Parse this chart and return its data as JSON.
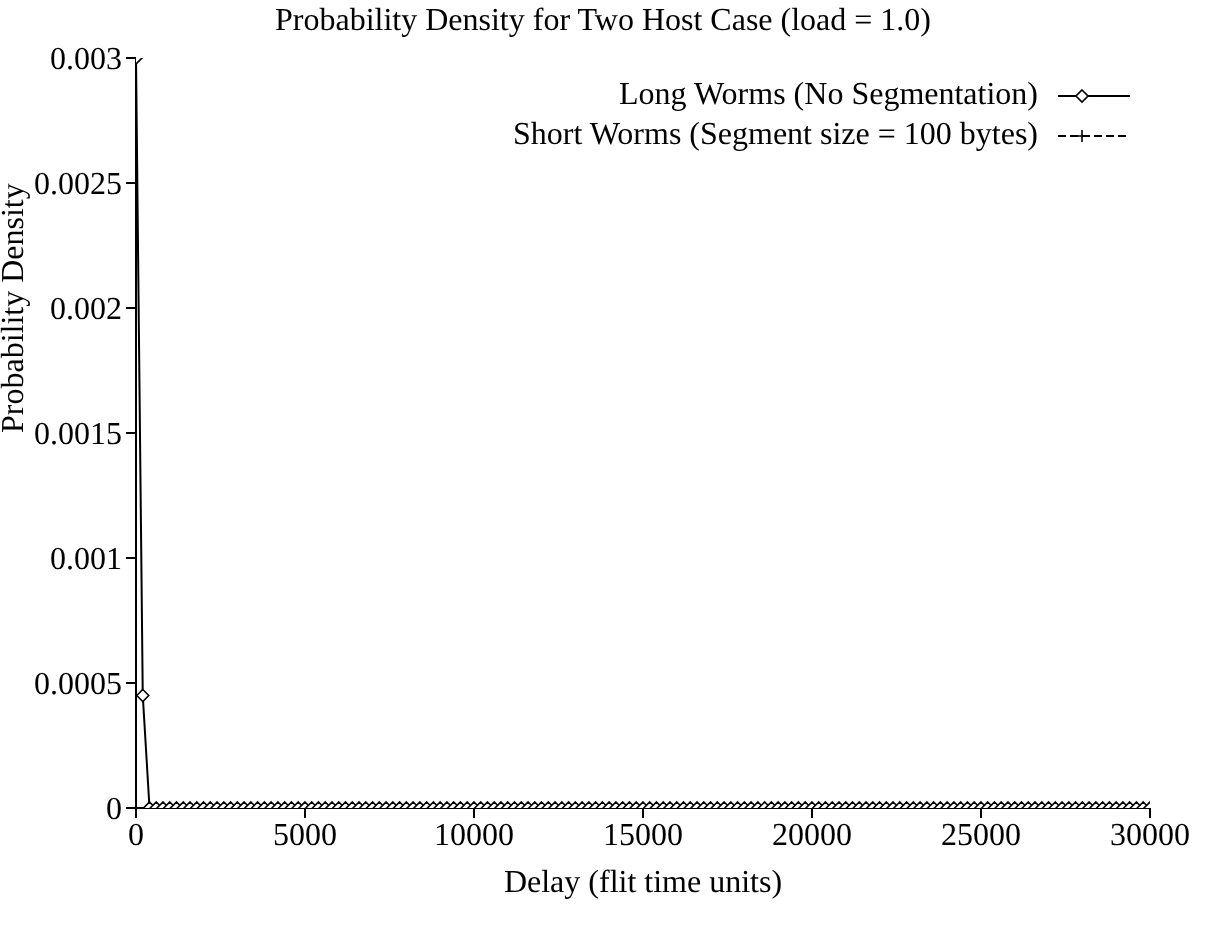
{
  "chart_data": {
    "type": "line",
    "title": "Probability Density for Two Host Case (load = 1.0)",
    "xlabel": "Delay (flit time units)",
    "ylabel": "Probability Density",
    "x": [
      0,
      200,
      400,
      600,
      800,
      1000,
      1200,
      1400,
      1600,
      1800,
      2000,
      2200,
      2400,
      2600,
      2800,
      3000,
      3200,
      3400,
      3600,
      3800,
      4000,
      4200,
      4400,
      4600,
      4800,
      5000,
      5200,
      5400,
      5600,
      5800,
      6000,
      6200,
      6400,
      6600,
      6800,
      7000,
      7200,
      7400,
      7600,
      7800,
      8000,
      8200,
      8400,
      8600,
      8800,
      9000,
      9200,
      9400,
      9600,
      9800,
      10000,
      10200,
      10400,
      10600,
      10800,
      11000,
      11200,
      11400,
      11600,
      11800,
      12000,
      12200,
      12400,
      12600,
      12800,
      13000,
      13200,
      13400,
      13600,
      13800,
      14000,
      14200,
      14400,
      14600,
      14800,
      15000,
      15200,
      15400,
      15600,
      15800,
      16000,
      16200,
      16400,
      16600,
      16800,
      17000,
      17200,
      17400,
      17600,
      17800,
      18000,
      18200,
      18400,
      18600,
      18800,
      19000,
      19200,
      19400,
      19600,
      19800,
      20000,
      20200,
      20400,
      20600,
      20800,
      21000,
      21200,
      21400,
      21600,
      21800,
      22000,
      22200,
      22400,
      22600,
      22800,
      23000,
      23200,
      23400,
      23600,
      23800,
      24000,
      24200,
      24400,
      24600,
      24800,
      25000,
      25200,
      25400,
      25600,
      25800,
      26000,
      26200,
      26400,
      26600,
      26800,
      27000,
      27200,
      27400,
      27600,
      27800,
      28000,
      28200,
      28400,
      28600,
      28800,
      29000,
      29200,
      29400,
      29600,
      29800,
      30000
    ],
    "series": [
      {
        "name": "Long Worms (No Segmentation)",
        "color": "#000000",
        "marker": "diamond",
        "line_style": "solid",
        "values": [
          0.003,
          0.00045,
          0,
          0,
          0,
          0,
          0,
          0,
          0,
          0,
          0,
          0,
          0,
          0,
          0,
          0,
          0,
          0,
          0,
          0,
          0,
          0,
          0,
          0,
          0,
          0,
          0,
          0,
          0,
          0,
          0,
          0,
          0,
          0,
          0,
          0,
          0,
          0,
          0,
          0,
          0,
          0,
          0,
          0,
          0,
          0,
          0,
          0,
          0,
          0,
          0,
          0,
          0,
          0,
          0,
          0,
          0,
          0,
          0,
          0,
          0,
          0,
          0,
          0,
          0,
          0,
          0,
          0,
          0,
          0,
          0,
          0,
          0,
          0,
          0,
          0,
          0,
          0,
          0,
          0,
          0,
          0,
          0,
          0,
          0,
          0,
          0,
          0,
          0,
          0,
          0,
          0,
          0,
          0,
          0,
          0,
          0,
          0,
          0,
          0,
          0,
          0,
          0,
          0,
          0,
          0,
          0,
          0,
          0,
          0,
          0,
          0,
          0,
          0,
          0,
          0,
          0,
          0,
          0,
          0,
          0,
          0,
          0,
          0,
          0,
          0,
          0,
          0,
          0,
          0,
          0,
          0,
          0,
          0,
          0,
          0,
          0,
          0,
          0,
          0,
          0,
          0,
          0,
          0,
          0,
          0,
          0,
          0,
          0,
          0,
          0
        ]
      },
      {
        "name": "Short Worms (Segment size = 100 bytes)",
        "color": "#000000",
        "marker": "cross",
        "line_style": "dashed",
        "values": [
          null,
          null,
          null,
          null,
          null,
          null,
          null,
          null,
          null,
          null,
          null,
          null,
          null,
          null,
          null,
          null,
          null,
          null,
          null,
          null,
          null,
          null,
          null,
          null,
          null,
          null,
          null,
          null,
          null,
          null,
          null,
          null,
          null,
          null,
          null,
          null,
          null,
          null,
          null,
          null,
          null,
          null,
          null,
          null,
          null,
          null,
          null,
          null,
          null,
          null,
          null,
          null,
          null,
          null,
          null,
          null,
          null,
          null,
          null,
          null,
          null,
          null,
          null,
          null,
          null,
          null,
          null,
          null,
          null,
          null,
          null,
          null,
          null,
          null,
          null,
          null,
          null,
          null,
          null,
          null,
          null,
          null,
          null,
          null,
          null,
          null,
          null,
          null,
          null,
          null,
          null,
          null,
          null,
          null,
          null,
          null,
          null,
          null,
          null,
          null,
          null,
          null,
          null,
          null,
          null,
          null,
          null,
          null,
          null,
          null,
          null,
          null,
          null,
          null,
          null,
          null,
          null,
          null,
          null,
          null,
          null,
          null,
          null,
          null,
          null,
          null,
          null,
          null,
          null,
          null,
          null,
          null,
          null,
          null,
          null,
          null,
          null,
          null,
          null,
          null,
          null,
          null,
          null,
          null,
          null,
          null,
          null,
          null,
          null,
          null,
          null
        ]
      }
    ],
    "xlim": [
      0,
      30000
    ],
    "xticks": [
      0,
      5000,
      10000,
      15000,
      20000,
      25000,
      30000
    ],
    "ylim": [
      0,
      0.003
    ],
    "yticks": [
      0,
      0.0005,
      0.001,
      0.0015,
      0.002,
      0.0025,
      0.003
    ],
    "grid": false,
    "legend": "top right"
  }
}
